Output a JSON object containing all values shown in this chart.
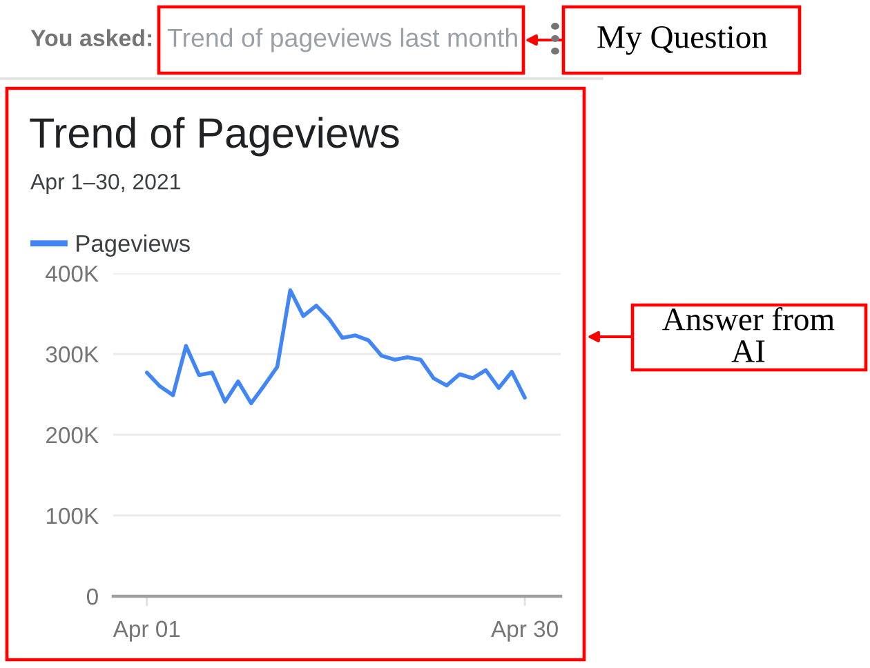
{
  "chart_data": {
    "type": "line",
    "title": "Trend of Pageviews",
    "subtitle": "Apr 1–30, 2021",
    "x": [
      "2021-04-01",
      "2021-04-02",
      "2021-04-03",
      "2021-04-04",
      "2021-04-05",
      "2021-04-06",
      "2021-04-07",
      "2021-04-08",
      "2021-04-09",
      "2021-04-10",
      "2021-04-11",
      "2021-04-12",
      "2021-04-13",
      "2021-04-14",
      "2021-04-15",
      "2021-04-16",
      "2021-04-17",
      "2021-04-18",
      "2021-04-19",
      "2021-04-20",
      "2021-04-21",
      "2021-04-22",
      "2021-04-23",
      "2021-04-24",
      "2021-04-25",
      "2021-04-26",
      "2021-04-27",
      "2021-04-28",
      "2021-04-29",
      "2021-04-30"
    ],
    "series": [
      {
        "name": "Pageviews",
        "color": "#4285f4",
        "values": [
          277000,
          260000,
          249000,
          310000,
          274000,
          277000,
          241000,
          266000,
          239000,
          261000,
          284000,
          379000,
          347000,
          360000,
          343000,
          320000,
          323000,
          317000,
          298000,
          293000,
          296000,
          293000,
          270000,
          261000,
          275000,
          270000,
          280000,
          258000,
          278000,
          246000
        ]
      }
    ],
    "xlim": [
      "2021-03-29T10:00",
      "2021-05-02T18:00"
    ],
    "xticks": [
      {
        "value": "2021-04-01",
        "label": "Apr 01"
      },
      {
        "value": "2021-04-30",
        "label": "Apr 30"
      }
    ],
    "ylim": [
      0,
      400000
    ],
    "yticks": [
      {
        "value": 0,
        "label": "0"
      },
      {
        "value": 100000,
        "label": "100K"
      },
      {
        "value": 200000,
        "label": "200K"
      },
      {
        "value": 300000,
        "label": "300K"
      },
      {
        "value": 400000,
        "label": "400K"
      }
    ],
    "grid": "y",
    "legend": "top left",
    "annotations": [
      "You asked:",
      "Trend of pageviews last month",
      "My Question",
      "Answer from AI"
    ]
  }
}
